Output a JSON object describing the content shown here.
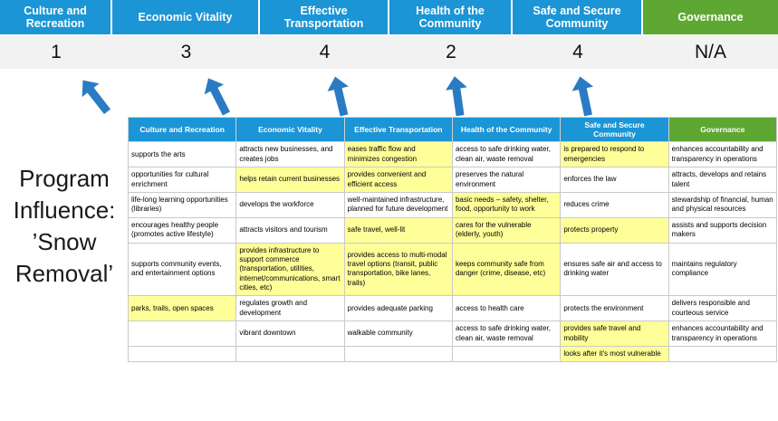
{
  "title": "Program\nInfluence:\n’Snow\nRemoval’",
  "pillars": [
    {
      "label": "Culture and Recreation",
      "score": "1",
      "type": "blue"
    },
    {
      "label": "Economic Vitality",
      "score": "3",
      "type": "blue"
    },
    {
      "label": "Effective Transportation",
      "score": "4",
      "type": "blue"
    },
    {
      "label": "Health of the Community",
      "score": "2",
      "type": "blue"
    },
    {
      "label": "Safe and Secure Community",
      "score": "4",
      "type": "blue"
    },
    {
      "label": "Governance",
      "score": "N/A",
      "type": "green"
    }
  ],
  "colors": {
    "blue": "#1B95D5",
    "green": "#5FA733",
    "highlight": "#FFFF99",
    "arrow": "#2B7BC4",
    "score_bg": "#F2F2F2"
  },
  "matrix": {
    "headers": [
      "Culture and Recreation",
      "Economic Vitality",
      "Effective Transportation",
      "Health of the Community",
      "Safe and Secure Community",
      "Governance"
    ],
    "rows": [
      [
        {
          "text": "supports the arts",
          "highlight": false
        },
        {
          "text": "attracts new businesses, and creates jobs",
          "highlight": false
        },
        {
          "text": "eases traffic flow and minimizes congestion",
          "highlight": true
        },
        {
          "text": "access to safe drinking water, clean air, waste removal",
          "highlight": false
        },
        {
          "text": "is prepared to respond to emergencies",
          "highlight": true
        },
        {
          "text": "enhances accountability and transparency in operations",
          "highlight": false
        }
      ],
      [
        {
          "text": "opportunities for cultural enrichment",
          "highlight": false
        },
        {
          "text": "helps retain current businesses",
          "highlight": true
        },
        {
          "text": "provides convenient and efficient access",
          "highlight": true
        },
        {
          "text": "preserves the natural environment",
          "highlight": false
        },
        {
          "text": "enforces the law",
          "highlight": false
        },
        {
          "text": "attracts, develops and retains talent",
          "highlight": false
        }
      ],
      [
        {
          "text": "life-long learning opportunities (libraries)",
          "highlight": false
        },
        {
          "text": "develops the workforce",
          "highlight": false
        },
        {
          "text": "well-maintained infrastructure, planned for future development",
          "highlight": false
        },
        {
          "text": "basic needs – safety, shelter, food, opportunity to work",
          "highlight": true
        },
        {
          "text": "reduces crime",
          "highlight": false
        },
        {
          "text": "stewardship of financial, human and physical resources",
          "highlight": false
        }
      ],
      [
        {
          "text": "encourages healthy people (promotes active lifestyle)",
          "highlight": false
        },
        {
          "text": "attracts visitors and tourism",
          "highlight": false
        },
        {
          "text": "safe travel, well-lit",
          "highlight": true
        },
        {
          "text": "cares for the vulnerable (elderly, youth)",
          "highlight": true
        },
        {
          "text": "protects property",
          "highlight": true
        },
        {
          "text": "assists and supports decision makers",
          "highlight": false
        }
      ],
      [
        {
          "text": "supports community events, and entertainment options",
          "highlight": false
        },
        {
          "text": "provides infrastructure to support commerce (transportation, utilities, internet/communications, smart cities, etc)",
          "highlight": true
        },
        {
          "text": "provides access to multi-modal travel options (transit, public transportation, bike lanes, trails)",
          "highlight": true
        },
        {
          "text": "keeps community safe from danger (crime, disease, etc)",
          "highlight": true
        },
        {
          "text": "ensures safe air and access to drinking water",
          "highlight": false
        },
        {
          "text": "maintains regulatory compliance",
          "highlight": false
        }
      ],
      [
        {
          "text": "parks, trails, open spaces",
          "highlight": true
        },
        {
          "text": "regulates growth and development",
          "highlight": false
        },
        {
          "text": "provides adequate parking",
          "highlight": false
        },
        {
          "text": "access to health care",
          "highlight": false
        },
        {
          "text": "protects the environment",
          "highlight": false
        },
        {
          "text": "delivers responsible and courteous service",
          "highlight": false
        }
      ],
      [
        {
          "text": "",
          "highlight": false
        },
        {
          "text": "vibrant downtown",
          "highlight": false
        },
        {
          "text": "walkable community",
          "highlight": false
        },
        {
          "text": "access to safe drinking water, clean air, waste removal",
          "highlight": false
        },
        {
          "text": "provides safe travel and mobility",
          "highlight": true
        },
        {
          "text": "enhances accountability and transparency in operations",
          "highlight": false
        }
      ],
      [
        {
          "text": "",
          "highlight": false
        },
        {
          "text": "",
          "highlight": false
        },
        {
          "text": "",
          "highlight": false
        },
        {
          "text": "",
          "highlight": false
        },
        {
          "text": "looks after it's most vulnerable",
          "highlight": true
        },
        {
          "text": "",
          "highlight": false
        }
      ]
    ]
  }
}
